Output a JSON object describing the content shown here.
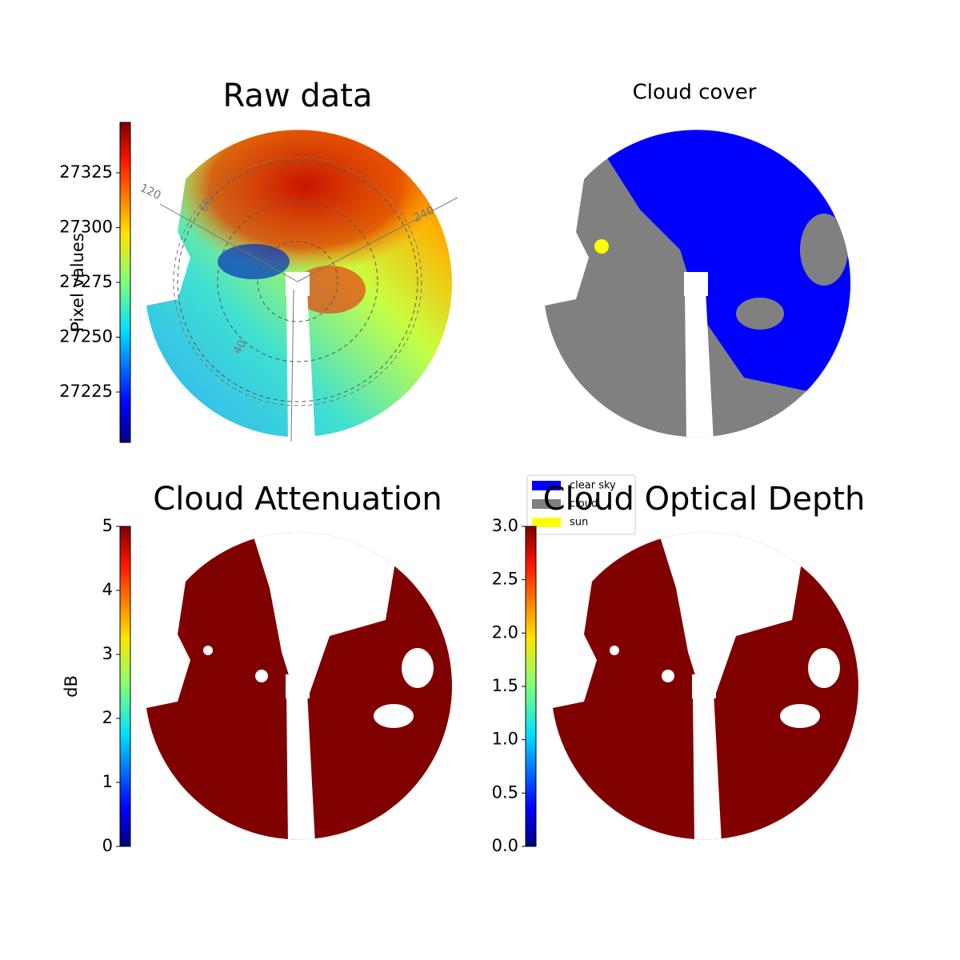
{
  "chart_data": [
    {
      "type": "image",
      "title": "Raw data",
      "ylabel": "Pixel values",
      "ylim": [
        27202,
        27348
      ],
      "yticks": [
        27225,
        27250,
        27275,
        27300,
        27325
      ],
      "annotations": [
        "120",
        "60",
        "240",
        "40"
      ]
    },
    {
      "type": "image",
      "title": "Cloud cover",
      "series": [
        {
          "name": "clear sky",
          "color": "#0000ff"
        },
        {
          "name": "cloud",
          "color": "#808080"
        },
        {
          "name": "sun",
          "color": "#ffff00"
        }
      ]
    },
    {
      "type": "image",
      "title": "Cloud Attenuation",
      "ylabel": "dB",
      "ylim": [
        0,
        5
      ],
      "yticks": [
        0,
        1,
        2,
        3,
        4,
        5
      ]
    },
    {
      "type": "image",
      "title": "Cloud Optical Depth",
      "ylim": [
        0,
        3
      ],
      "yticks": [
        {
          "value": 0,
          "label": "0.0"
        },
        0.5,
        {
          "value": 1,
          "label": "1.0"
        },
        1.5,
        {
          "value": 2,
          "label": "2.0"
        },
        2.5,
        {
          "value": 3,
          "label": "3.0"
        }
      ]
    }
  ]
}
